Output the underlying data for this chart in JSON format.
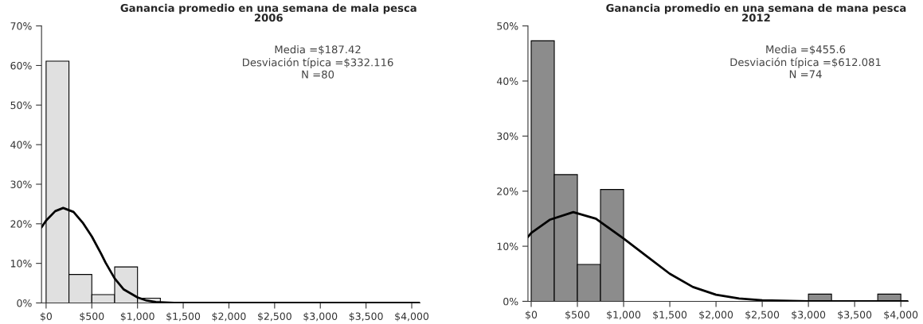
{
  "chart_data": [
    {
      "type": "histogram",
      "title": "Ganancia promedio en una semana de mala pesca",
      "subtitle": "2006",
      "bins": [
        0,
        250,
        500,
        750,
        1000,
        1250
      ],
      "values": [
        61.1,
        7.2,
        2.1,
        9.1,
        1.2
      ],
      "color": "#e0e0e0",
      "series": [
        {
          "type": "line",
          "color": "#000000",
          "x": [
            -50,
            0,
            100,
            187,
            300,
            400,
            500,
            600,
            650,
            750,
            850,
            1000,
            1100,
            1200,
            1400,
            4090
          ],
          "values": [
            19.1,
            20.8,
            23.2,
            24,
            23,
            20.3,
            16.8,
            12.5,
            10.2,
            6.2,
            3.4,
            1.4,
            0.6,
            0.2,
            0,
            0
          ]
        }
      ],
      "xlim": [
        -50,
        4090
      ],
      "ylim": [
        0,
        70
      ],
      "xticks": [
        {
          "value": 0,
          "label": "$0"
        },
        {
          "value": 500,
          "label": "$500"
        },
        {
          "value": 1000,
          "label": "$1,000"
        },
        {
          "value": 1500,
          "label": "$1,500"
        },
        {
          "value": 2000,
          "label": "$2,000"
        },
        {
          "value": 2500,
          "label": "$2,500"
        },
        {
          "value": 3000,
          "label": "$3,000"
        },
        {
          "value": 3500,
          "label": "$3,500"
        },
        {
          "value": 4000,
          "label": "$4,000"
        }
      ],
      "yticks": [
        {
          "value": 0,
          "label": "0%"
        },
        {
          "value": 10,
          "label": "10%"
        },
        {
          "value": 20,
          "label": "20%"
        },
        {
          "value": 30,
          "label": "30%"
        },
        {
          "value": 40,
          "label": "40%"
        },
        {
          "value": 50,
          "label": "50%"
        },
        {
          "value": 60,
          "label": "60%"
        },
        {
          "value": 70,
          "label": "70%"
        }
      ],
      "annotations": [
        "Media =$187.42",
        "Desviación típica =$332.116",
        "N =80"
      ],
      "grid": false
    },
    {
      "type": "histogram",
      "title": "Ganancia promedio en una semana de mana pesca",
      "subtitle": "2012",
      "bins": [
        0,
        250,
        500,
        750,
        1000,
        1250,
        1500,
        1750,
        2000,
        2250,
        2500,
        2750,
        3000,
        3250,
        3500,
        3750,
        4000
      ],
      "values": [
        47.3,
        23.0,
        6.7,
        20.3,
        0,
        0,
        0,
        0,
        0,
        0,
        0,
        0,
        1.3,
        0,
        0,
        1.3
      ],
      "color": "#8c8c8c",
      "series": [
        {
          "type": "line",
          "color": "#000000",
          "x": [
            -35,
            0,
            200,
            455,
            700,
            1000,
            1250,
            1500,
            1750,
            2000,
            2250,
            2500,
            3000,
            4080
          ],
          "values": [
            11.7,
            12.4,
            14.8,
            16.2,
            15,
            11.4,
            8.2,
            5.0,
            2.6,
            1.2,
            0.5,
            0.2,
            0,
            0
          ]
        }
      ],
      "xlim": [
        -35,
        4080
      ],
      "ylim": [
        0,
        50
      ],
      "xticks": [
        {
          "value": 0,
          "label": "$0"
        },
        {
          "value": 500,
          "label": "$500"
        },
        {
          "value": 1000,
          "label": "$1,000"
        },
        {
          "value": 1500,
          "label": "$1,500"
        },
        {
          "value": 2000,
          "label": "$2,000"
        },
        {
          "value": 2500,
          "label": "$2,500"
        },
        {
          "value": 3000,
          "label": "$3,000"
        },
        {
          "value": 3500,
          "label": "$3,500"
        },
        {
          "value": 4000,
          "label": "$4,000"
        }
      ],
      "yticks": [
        {
          "value": 0,
          "label": "0%"
        },
        {
          "value": 10,
          "label": "10%"
        },
        {
          "value": 20,
          "label": "20%"
        },
        {
          "value": 30,
          "label": "30%"
        },
        {
          "value": 40,
          "label": "40%"
        },
        {
          "value": 50,
          "label": "50%"
        }
      ],
      "annotations": [
        "Media =$455.6",
        "Desviación típica =$612.081",
        "N =74"
      ],
      "grid": false
    }
  ]
}
